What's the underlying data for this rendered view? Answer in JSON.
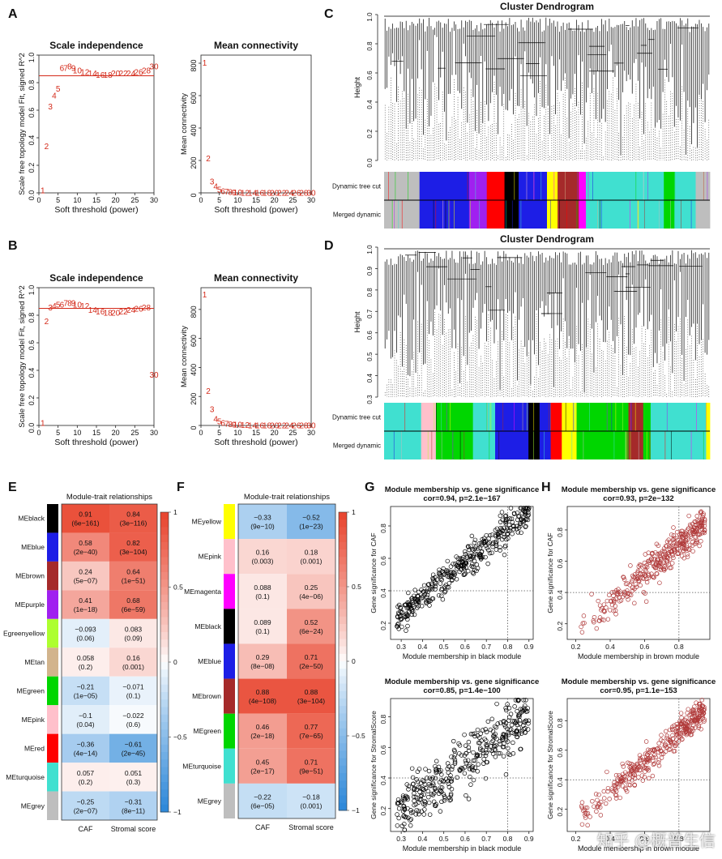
{
  "panels": {
    "A": {
      "letter": "A"
    },
    "B": {
      "letter": "B"
    },
    "C": {
      "letter": "C"
    },
    "D": {
      "letter": "D"
    },
    "E": {
      "letter": "E"
    },
    "F": {
      "letter": "F"
    },
    "G": {
      "letter": "G"
    },
    "H": {
      "letter": "H"
    }
  },
  "watermark": "知乎 @概普生信",
  "colors": {
    "red": "#d42a1a",
    "heat_pos": "#e8422b",
    "heat_neg": "#2a86d8",
    "module_colors": {
      "black": "#000000",
      "blue": "#1d1ee6",
      "brown": "#a52a2a",
      "purple": "#a020f0",
      "greenyellow": "#adff2f",
      "tan": "#d2b48c",
      "green": "#00d600",
      "pink": "#ffc0cb",
      "red": "#ff0000",
      "turquoise": "#40e0d0",
      "grey": "#bebebe",
      "yellow": "#ffff00",
      "magenta": "#ff00ff"
    }
  },
  "chart_data": [
    {
      "id": "A-scale",
      "type": "scatter",
      "title": "Scale independence",
      "xlabel": "Soft threshold (power)",
      "ylabel": "Scale free topology model Fit, signed R^2",
      "xlim": [
        0,
        30
      ],
      "ylim": [
        0,
        1.0
      ],
      "xticks": [
        "0",
        "5",
        "10",
        "15",
        "20",
        "25",
        "30"
      ],
      "yticks": [
        "0.0",
        "0.2",
        "0.4",
        "0.6",
        "0.8",
        "1.0"
      ],
      "hline": 0.85,
      "x": [
        1,
        2,
        3,
        4,
        5,
        6,
        7,
        8,
        9,
        10,
        12,
        14,
        16,
        18,
        20,
        22,
        24,
        26,
        28,
        30
      ],
      "y": [
        0.02,
        0.34,
        0.63,
        0.71,
        0.76,
        0.91,
        0.91,
        0.92,
        0.91,
        0.89,
        0.88,
        0.87,
        0.86,
        0.86,
        0.87,
        0.87,
        0.87,
        0.88,
        0.89,
        0.92
      ]
    },
    {
      "id": "A-mean",
      "type": "scatter",
      "title": "Mean connectivity",
      "xlabel": "Soft threshold (power)",
      "ylabel": "Mean connectivity",
      "xlim": [
        0,
        30
      ],
      "ylim": [
        0,
        850
      ],
      "xticks": [
        "0",
        "5",
        "10",
        "15",
        "20",
        "25",
        "30"
      ],
      "yticks": [
        "0",
        "200",
        "400",
        "600",
        "800"
      ],
      "x": [
        1,
        2,
        3,
        4,
        5,
        6,
        7,
        8,
        9,
        10,
        12,
        14,
        16,
        18,
        20,
        22,
        24,
        26,
        28,
        30
      ],
      "y": [
        805,
        215,
        72,
        42,
        22,
        13,
        9,
        7,
        5,
        4,
        3,
        3,
        2,
        2,
        2,
        2,
        2,
        2,
        2,
        2
      ]
    },
    {
      "id": "B-scale",
      "type": "scatter",
      "title": "Scale independence",
      "xlabel": "Soft threshold (power)",
      "ylabel": "Scale free topology model Fit, signed R^2",
      "xlim": [
        0,
        30
      ],
      "ylim": [
        0,
        1.0
      ],
      "xticks": [
        "0",
        "5",
        "10",
        "15",
        "20",
        "25",
        "30"
      ],
      "yticks": [
        "0.0",
        "0.2",
        "0.4",
        "0.6",
        "0.8",
        "1.0"
      ],
      "hline": 0.85,
      "x": [
        1,
        2,
        3,
        4,
        5,
        6,
        7,
        8,
        9,
        10,
        12,
        14,
        16,
        18,
        20,
        22,
        24,
        26,
        28,
        30
      ],
      "y": [
        0.02,
        0.76,
        0.86,
        0.87,
        0.88,
        0.88,
        0.89,
        0.89,
        0.89,
        0.88,
        0.87,
        0.84,
        0.83,
        0.82,
        0.82,
        0.83,
        0.84,
        0.85,
        0.86,
        0.37
      ]
    },
    {
      "id": "B-mean",
      "type": "scatter",
      "title": "Mean connectivity",
      "xlabel": "Soft threshold (power)",
      "ylabel": "Mean connectivity",
      "xlim": [
        0,
        30
      ],
      "ylim": [
        0,
        950
      ],
      "xticks": [
        "0",
        "5",
        "10",
        "15",
        "20",
        "25",
        "30"
      ],
      "yticks": [
        "0",
        "200",
        "400",
        "600",
        "800"
      ],
      "x": [
        1,
        2,
        3,
        4,
        5,
        6,
        7,
        8,
        9,
        10,
        12,
        14,
        16,
        18,
        20,
        22,
        24,
        26,
        28,
        30
      ],
      "y": [
        905,
        240,
        115,
        48,
        30,
        20,
        14,
        10,
        8,
        7,
        5,
        4,
        4,
        3,
        3,
        3,
        3,
        3,
        3,
        3
      ]
    },
    {
      "id": "C-dendro",
      "type": "dendrogram",
      "title": "Cluster Dendrogram",
      "ylabel": "Height",
      "ylim": [
        0,
        1.0
      ],
      "yticks": [
        "0.0",
        "0.2",
        "0.4",
        "0.6",
        "0.8",
        "1.0"
      ],
      "rows": [
        "Dynamic tree cut",
        "Merged dynamic"
      ],
      "segments": [
        {
          "color": "grey",
          "w": 10
        },
        {
          "color": "blue",
          "w": 14
        },
        {
          "color": "purple",
          "w": 5
        },
        {
          "color": "red",
          "w": 5
        },
        {
          "color": "black",
          "w": 4
        },
        {
          "color": "blue",
          "w": 8
        },
        {
          "color": "yellow",
          "w": 3
        },
        {
          "color": "brown",
          "w": 6
        },
        {
          "color": "magenta",
          "w": 2
        },
        {
          "color": "turquoise",
          "w": 22
        },
        {
          "color": "green",
          "w": 3
        },
        {
          "color": "turquoise",
          "w": 6
        },
        {
          "color": "grey",
          "w": 4
        }
      ]
    },
    {
      "id": "D-dendro",
      "type": "dendrogram",
      "title": "Cluster Dendrogram",
      "ylabel": "Height",
      "ylim": [
        0.3,
        1.0
      ],
      "yticks": [
        "0.3",
        "0.4",
        "0.5",
        "0.6",
        "0.7",
        "0.8",
        "0.9",
        "1.0"
      ],
      "rows": [
        "Dynamic tree cut",
        "Merged dynamic"
      ],
      "segments": [
        {
          "color": "turquoise",
          "w": 10
        },
        {
          "color": "pink",
          "w": 4
        },
        {
          "color": "green",
          "w": 10
        },
        {
          "color": "turquoise",
          "w": 6
        },
        {
          "color": "blue",
          "w": 9
        },
        {
          "color": "black",
          "w": 3
        },
        {
          "color": "blue",
          "w": 3
        },
        {
          "color": "red",
          "w": 3
        },
        {
          "color": "yellow",
          "w": 4
        },
        {
          "color": "green",
          "w": 14
        },
        {
          "color": "brown",
          "w": 4
        },
        {
          "color": "green",
          "w": 2
        },
        {
          "color": "turquoise",
          "w": 15
        },
        {
          "color": "yellow",
          "w": 1
        }
      ]
    },
    {
      "id": "E-heatmap",
      "type": "heatmap",
      "title": "Module-trait relationships",
      "columns": [
        "CAF",
        "Stromal score"
      ],
      "colorbar": [
        "1",
        "0.5",
        "0",
        "−0.5",
        "−1"
      ],
      "rows": [
        {
          "name": "MEblack",
          "color": "black",
          "values": [
            0.91,
            0.84
          ],
          "labels": [
            "0.91\n(6e−161)",
            "0.84\n(3e−116)"
          ]
        },
        {
          "name": "MEblue",
          "color": "blue",
          "values": [
            0.58,
            0.82
          ],
          "labels": [
            "0.58\n(2e−40)",
            "0.82\n(3e−104)"
          ]
        },
        {
          "name": "MEbrown",
          "color": "brown",
          "values": [
            0.24,
            0.64
          ],
          "labels": [
            "0.24\n(5e−07)",
            "0.64\n(1e−51)"
          ]
        },
        {
          "name": "MEpurple",
          "color": "purple",
          "values": [
            0.41,
            0.68
          ],
          "labels": [
            "0.41\n(1e−18)",
            "0.68\n(6e−59)"
          ]
        },
        {
          "name": "MEgreenyellow",
          "color": "greenyellow",
          "values": [
            -0.093,
            0.083
          ],
          "labels": [
            "−0.093\n(0.06)",
            "0.083\n(0.09)"
          ]
        },
        {
          "name": "MEtan",
          "color": "tan",
          "values": [
            0.058,
            0.16
          ],
          "labels": [
            "0.058\n(0.2)",
            "0.16\n(0.001)"
          ]
        },
        {
          "name": "MEgreen",
          "color": "green",
          "values": [
            -0.21,
            -0.071
          ],
          "labels": [
            "−0.21\n(1e−05)",
            "−0.071\n(0.1)"
          ]
        },
        {
          "name": "MEpink",
          "color": "pink",
          "values": [
            -0.1,
            -0.022
          ],
          "labels": [
            "−0.1\n(0.04)",
            "−0.022\n(0.6)"
          ]
        },
        {
          "name": "MEred",
          "color": "red",
          "values": [
            -0.36,
            -0.61
          ],
          "labels": [
            "−0.36\n(4e−14)",
            "−0.61\n(2e−45)"
          ]
        },
        {
          "name": "MEturquoise",
          "color": "turquoise",
          "values": [
            0.057,
            0.051
          ],
          "labels": [
            "0.057\n(0.2)",
            "0.051\n(0.3)"
          ]
        },
        {
          "name": "MEgrey",
          "color": "grey",
          "values": [
            -0.25,
            -0.31
          ],
          "labels": [
            "−0.25\n(2e−07)",
            "−0.31\n(8e−11)"
          ]
        }
      ],
      "row_display": [
        "MEblack",
        "MEblue",
        "MEbrown",
        "MEpurple",
        "Egreenyellow",
        "MEtan",
        "MEgreen",
        "MEpink",
        "MEred",
        "MEturquoise",
        "MEgrey"
      ]
    },
    {
      "id": "F-heatmap",
      "type": "heatmap",
      "title": "Module-trait relationships",
      "columns": [
        "CAF",
        "Stromal score"
      ],
      "colorbar": [
        "1",
        "0.5",
        "0",
        "−0.5",
        "−1"
      ],
      "rows": [
        {
          "name": "MEyellow",
          "color": "yellow",
          "values": [
            -0.33,
            -0.52
          ],
          "labels": [
            "−0.33\n(9e−10)",
            "−0.52\n(1e−23)"
          ]
        },
        {
          "name": "MEpink",
          "color": "pink",
          "values": [
            0.16,
            0.18
          ],
          "labels": [
            "0.16\n(0.003)",
            "0.18\n(0.001)"
          ]
        },
        {
          "name": "MEmagenta",
          "color": "magenta",
          "values": [
            0.088,
            0.25
          ],
          "labels": [
            "0.088\n(0.1)",
            "0.25\n(4e−06)"
          ]
        },
        {
          "name": "MEblack",
          "color": "black",
          "values": [
            0.089,
            0.52
          ],
          "labels": [
            "0.089\n(0.1)",
            "0.52\n(6e−24)"
          ]
        },
        {
          "name": "MEblue",
          "color": "blue",
          "values": [
            0.29,
            0.71
          ],
          "labels": [
            "0.29\n(8e−08)",
            "0.71\n(2e−50)"
          ]
        },
        {
          "name": "MEbrown",
          "color": "brown",
          "values": [
            0.88,
            0.88
          ],
          "labels": [
            "0.88\n(4e−108)",
            "0.88\n(3e−104)"
          ]
        },
        {
          "name": "MEgreen",
          "color": "green",
          "values": [
            0.46,
            0.77
          ],
          "labels": [
            "0.46\n(2e−18)",
            "0.77\n(7e−65)"
          ]
        },
        {
          "name": "MEturquoise",
          "color": "turquoise",
          "values": [
            0.45,
            0.71
          ],
          "labels": [
            "0.45\n(2e−17)",
            "0.71\n(9e−51)"
          ]
        },
        {
          "name": "MEgrey",
          "color": "grey",
          "values": [
            -0.22,
            -0.18
          ],
          "labels": [
            "−0.22\n(6e−05)",
            "−0.18\n(0.001)"
          ]
        }
      ],
      "row_display": [
        "MEyellow",
        "MEpink",
        "MEmagenta",
        "MEblack",
        "MEblue",
        "MEbrown",
        "MEgreen",
        "MEturquoise",
        "MEgrey"
      ]
    },
    {
      "id": "G-top",
      "type": "scatter",
      "title": "Module membership vs. gene significance",
      "subtitle": "cor=0.94, p=2.1e−167",
      "xlabel": "Module membership in black module",
      "ylabel": "Gene significance for CAF",
      "xlim": [
        0.25,
        0.92
      ],
      "ylim": [
        0.1,
        0.92
      ],
      "xticks": [
        "0.3",
        "0.4",
        "0.5",
        "0.6",
        "0.7",
        "0.8",
        "0.9"
      ],
      "yticks": [
        "0.2",
        "0.4",
        "0.6",
        "0.8"
      ],
      "ref": [
        0.8,
        0.4
      ],
      "point_color": "#000000",
      "trend": {
        "slope": 1.05,
        "intercept": -0.06,
        "noise": 0.05,
        "n": 380,
        "xmin": 0.28,
        "xmax": 0.9
      }
    },
    {
      "id": "G-bottom",
      "type": "scatter",
      "title": "Module membership vs. gene significance",
      "subtitle": "cor=0.85, p=1.4e−100",
      "xlabel": "Module membership in black module",
      "ylabel": "Gene significance for StromalScore",
      "xlim": [
        0.25,
        0.92
      ],
      "ylim": [
        0.05,
        0.92
      ],
      "xticks": [
        "0.3",
        "0.4",
        "0.5",
        "0.6",
        "0.7",
        "0.8",
        "0.9"
      ],
      "yticks": [
        "0.2",
        "0.4",
        "0.6",
        "0.8"
      ],
      "ref": [
        0.8,
        0.4
      ],
      "point_color": "#000000",
      "trend": {
        "slope": 1.0,
        "intercept": -0.1,
        "noise": 0.09,
        "n": 380,
        "xmin": 0.28,
        "xmax": 0.9
      }
    },
    {
      "id": "H-top",
      "type": "scatter",
      "title": "Module membership vs. gene significance",
      "subtitle": "cor=0.93, p=2e−132",
      "xlabel": "Module membership in brown module",
      "ylabel": "Gene significance for CAF",
      "xlim": [
        0.15,
        0.98
      ],
      "ylim": [
        0.1,
        0.95
      ],
      "xticks": [
        "0.2",
        "0.4",
        "0.6",
        "0.8"
      ],
      "yticks": [
        "0.2",
        "0.4",
        "0.6",
        "0.8"
      ],
      "ref": [
        0.8,
        0.4
      ],
      "point_color": "#b03a3a",
      "trend": {
        "slope": 0.95,
        "intercept": -0.05,
        "noise": 0.05,
        "n": 360,
        "xmin": 0.2,
        "xmax": 0.95,
        "skew": 1.8
      }
    },
    {
      "id": "H-bottom",
      "type": "scatter",
      "title": "Module membership vs. gene significance",
      "subtitle": "cor=0.95, p=1.1e−153",
      "xlabel": "Module membership in brown module",
      "ylabel": "Gene significance for StromalScore",
      "xlim": [
        0.15,
        0.98
      ],
      "ylim": [
        0.05,
        0.95
      ],
      "xticks": [
        "0.2",
        "0.4",
        "0.6",
        "0.8"
      ],
      "yticks": [
        "0.2",
        "0.4",
        "0.6",
        "0.8"
      ],
      "ref": [
        0.8,
        0.4
      ],
      "point_color": "#b03a3a",
      "trend": {
        "slope": 1.0,
        "intercept": -0.08,
        "noise": 0.045,
        "n": 360,
        "xmin": 0.2,
        "xmax": 0.95,
        "skew": 1.8
      }
    }
  ]
}
